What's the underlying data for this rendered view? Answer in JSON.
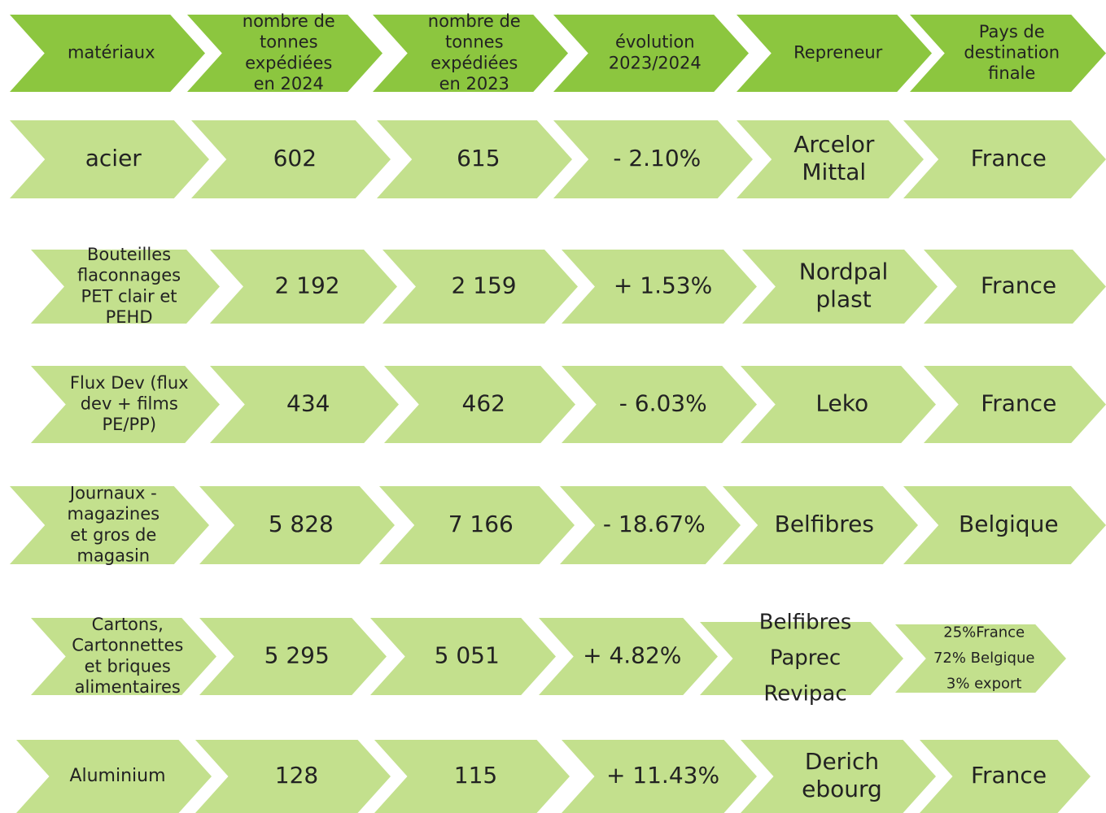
{
  "header": [
    [
      "matériaux"
    ],
    [
      "nombre de",
      "tonnes",
      "expédiées",
      "en 2024"
    ],
    [
      "nombre de",
      "tonnes",
      "expédiées",
      "en 2023"
    ],
    [
      "évolution",
      "2023/2024"
    ],
    [
      "Repreneur"
    ],
    [
      "Pays de",
      "destination",
      "finale"
    ]
  ],
  "rows": [
    [
      [
        "acier"
      ],
      [
        "602"
      ],
      [
        "615"
      ],
      [
        "- 2.10%"
      ],
      [
        "Arcelor",
        "Mittal"
      ],
      [
        "France"
      ]
    ],
    [
      [
        "Bouteilles",
        "flaconnages",
        "PET clair et",
        "PEHD"
      ],
      [
        "2 192"
      ],
      [
        "2 159"
      ],
      [
        "+ 1.53%"
      ],
      [
        "Nordpal",
        "plast"
      ],
      [
        "France"
      ]
    ],
    [
      [
        "Flux Dev (flux",
        "dev +  films",
        "PE/PP)"
      ],
      [
        "434"
      ],
      [
        "462"
      ],
      [
        "- 6.03%"
      ],
      [
        "Leko"
      ],
      [
        "France"
      ]
    ],
    [
      [
        "Journaux -",
        "magazines",
        "et gros de",
        "magasin"
      ],
      [
        "5 828"
      ],
      [
        "7 166"
      ],
      [
        "- 18.67%"
      ],
      [
        "Belfibres"
      ],
      [
        "Belgique"
      ]
    ],
    [
      [
        "Cartons,",
        "Cartonnettes",
        "et briques",
        "alimentaires"
      ],
      [
        "5 295"
      ],
      [
        "5 051"
      ],
      [
        "+ 4.82%"
      ],
      [
        "Belfibres",
        "Paprec",
        "Revipac"
      ],
      [
        "25%France",
        "72% Belgique",
        "3% export"
      ]
    ],
    [
      [
        "Aluminium"
      ],
      [
        "128"
      ],
      [
        "115"
      ],
      [
        "+ 11.43%"
      ],
      [
        "Derich",
        "ebourg"
      ],
      [
        "France"
      ]
    ]
  ]
}
